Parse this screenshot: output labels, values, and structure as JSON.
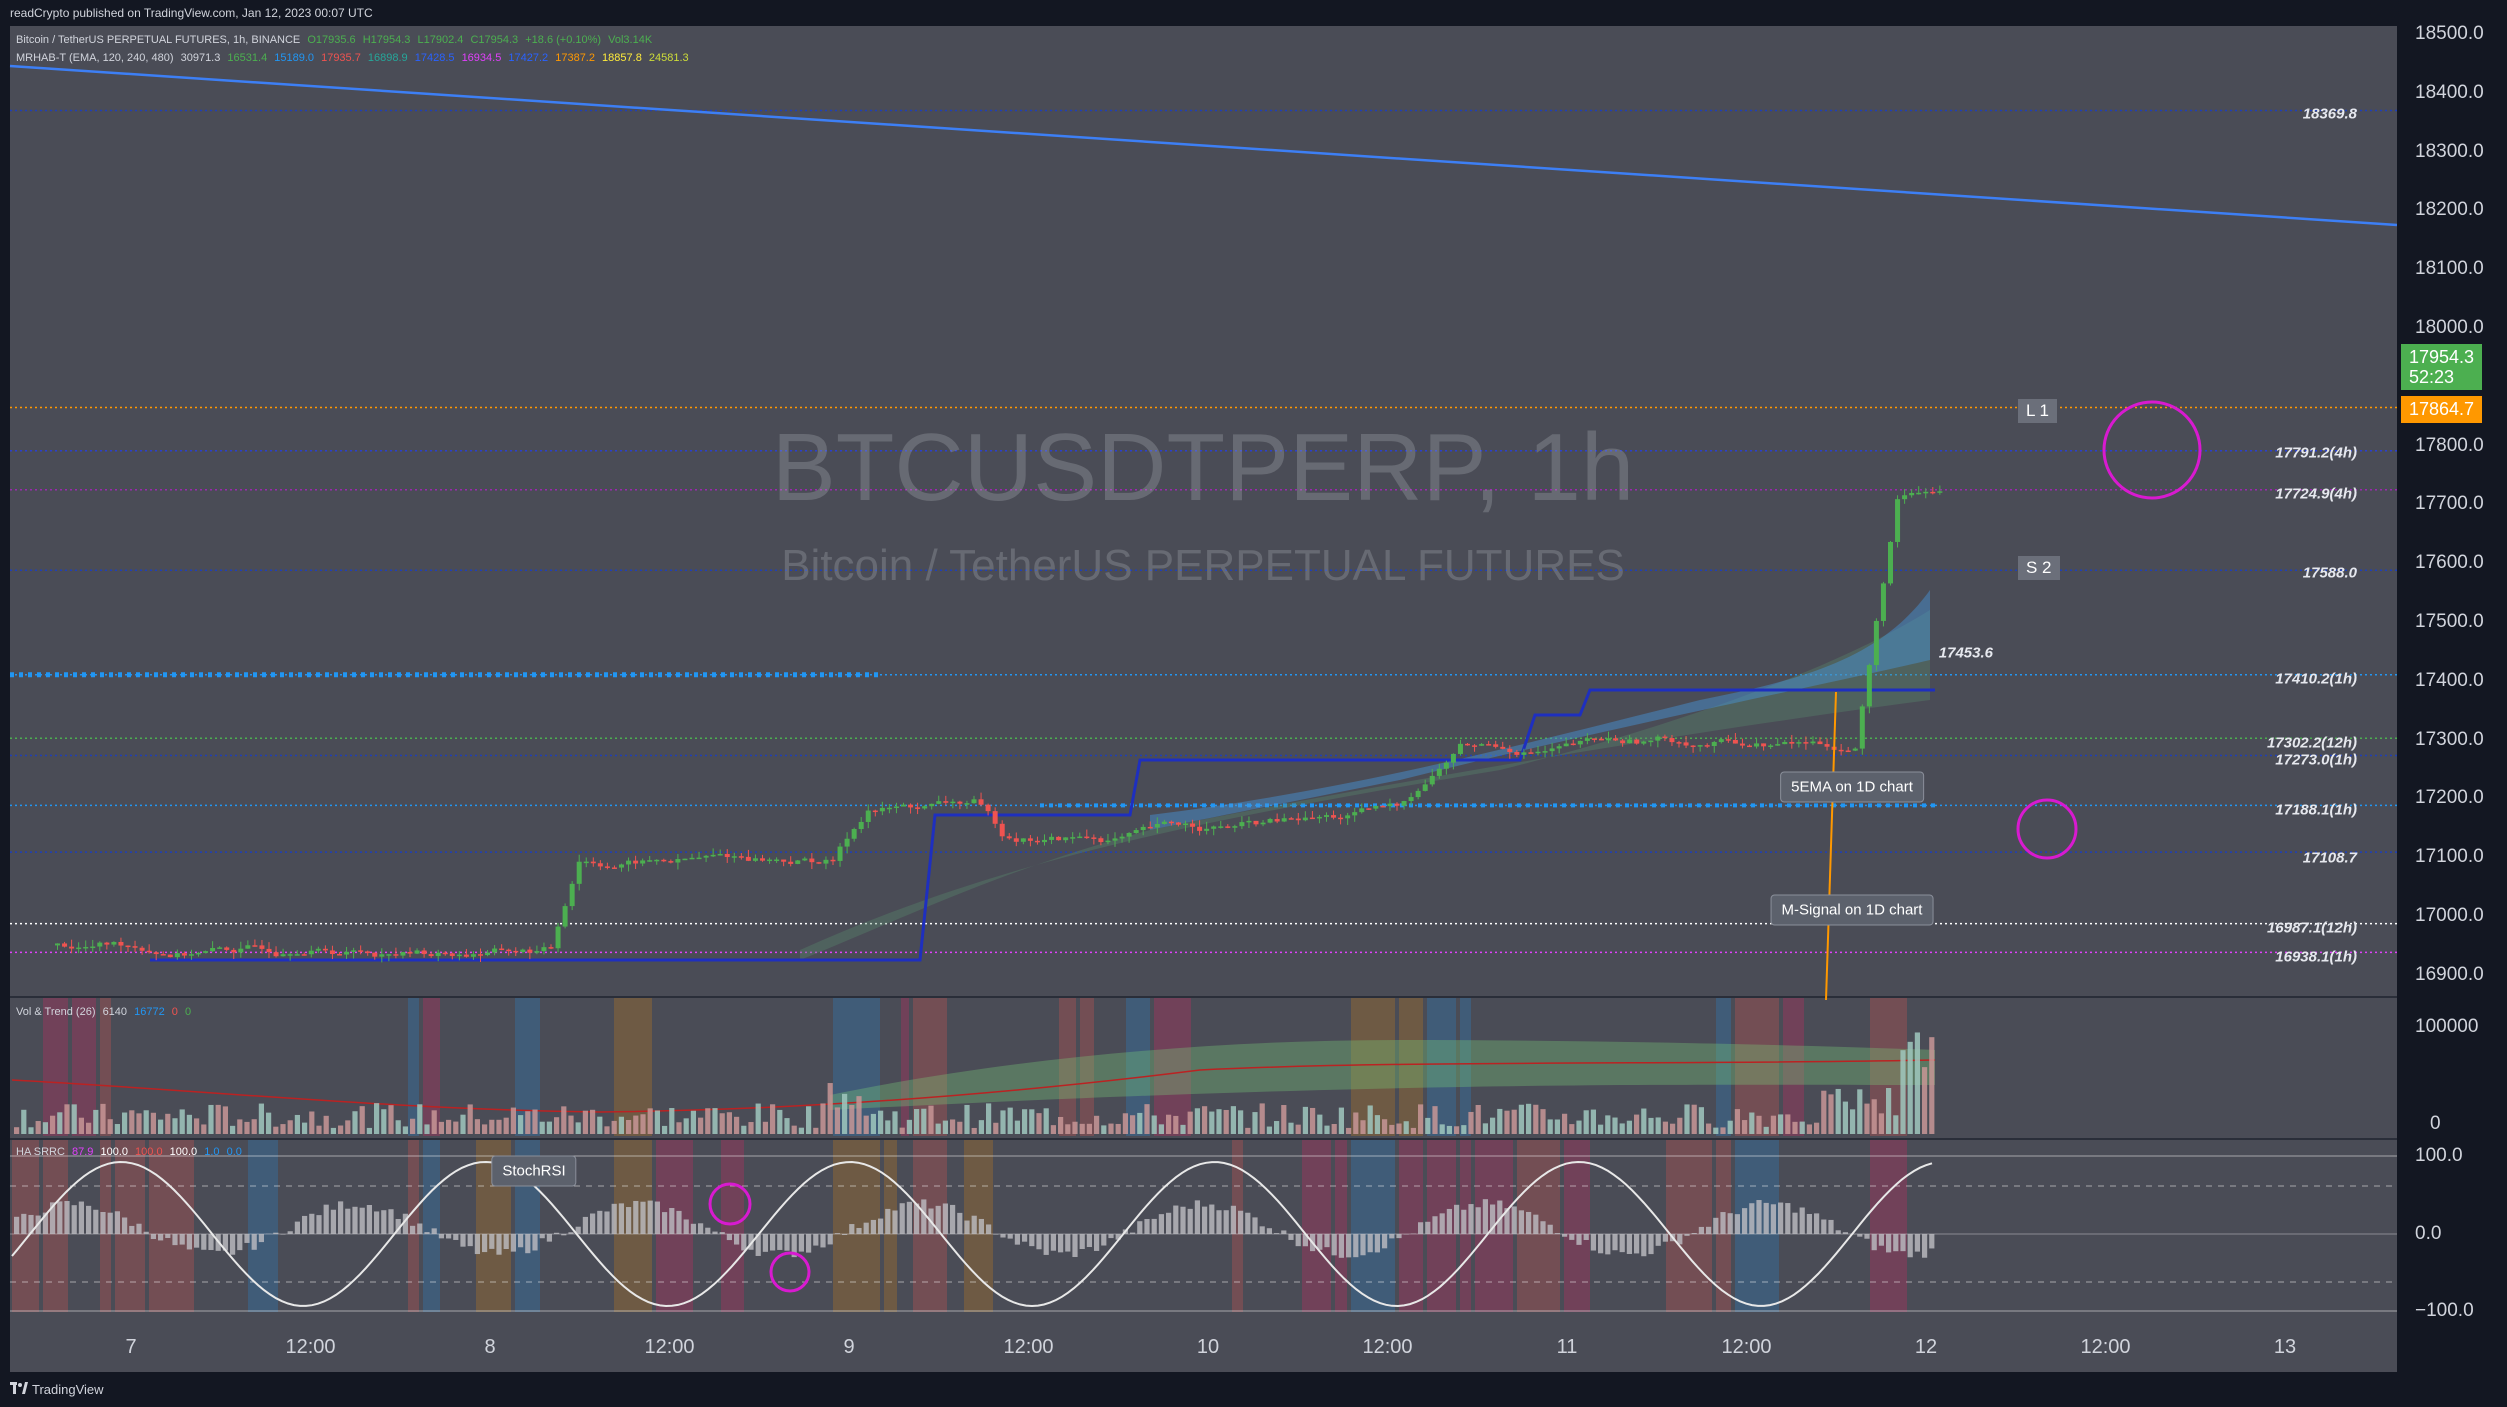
{
  "header": {
    "publisher": "readCrypto published on TradingView.com, Jan 12, 2023 00:07 UTC"
  },
  "legend_main": {
    "symbol": "Bitcoin / TetherUS PERPETUAL FUTURES, 1h, BINANCE",
    "o": "O17935.6",
    "h": "H17954.3",
    "l": "L17902.4",
    "c": "C17954.3",
    "chg": "+18.6 (+0.10%)",
    "vol": "Vol3.14K"
  },
  "legend_indicator": {
    "name": "MRHAB-T (EMA, 120, 240, 480)",
    "v1": "30971.3",
    "v2": "16531.4",
    "v3": "15189.0",
    "v4": "17935.7",
    "v5": "16898.9",
    "v6": "17428.5",
    "v7": "16934.5",
    "v8": "17427.2",
    "v9": "17387.2",
    "v10": "18857.8",
    "v11": "24581.3"
  },
  "watermark": {
    "ticker": "BTCUSDTPERP, 1h",
    "name": "Bitcoin / TetherUS PERPETUAL FUTURES"
  },
  "price_axis": {
    "labels": [
      "18500.0",
      "18400.0",
      "18300.0",
      "18200.0",
      "18100.0",
      "18000.0",
      "17800.0",
      "17700.0",
      "17600.0",
      "17500.0",
      "17400.0",
      "17300.0",
      "17200.0",
      "17100.0",
      "17000.0",
      "16900.0"
    ],
    "last_price": "17954.3",
    "countdown": "52:23",
    "orange_price": "17864.7",
    "last_price_color": "#4caf50",
    "orange_price_color": "#ff9800"
  },
  "levels": {
    "l1": "18369.8",
    "l2": "17791.2(4h)",
    "l3": "17724.9(4h)",
    "l4": "17588.0",
    "l5": "17453.6",
    "l6": "17410.2(1h)",
    "l7": "17302.2(12h)",
    "l8": "17273.0(1h)",
    "l9": "17188.1(1h)",
    "l10": "17108.7",
    "l11": "16987.1(12h)",
    "l12": "16938.1(1h)"
  },
  "tags": {
    "l_tag": "L 1",
    "s_tag": "S 2"
  },
  "annotations": {
    "ema_note": "5EMA on 1D chart",
    "msignal_note": "M-Signal on 1D chart",
    "stochrsi_note": "StochRSI"
  },
  "vol_pane": {
    "legend_name": "Vol & Trend (26)",
    "v1": "6140",
    "v2": "16772",
    "v3": "0",
    "v4": "0",
    "ticks": [
      "100000",
      "0"
    ]
  },
  "ha_pane": {
    "legend_name": "HA SRRC",
    "v1": "87.9",
    "v2": "100.0",
    "v3": "100.0",
    "v4": "100.0",
    "v5": "1.0",
    "v6": "0.0",
    "ticks": [
      "100.0",
      "0.0",
      "−100.0"
    ]
  },
  "time_axis": [
    "7",
    "12:00",
    "8",
    "12:00",
    "9",
    "12:00",
    "10",
    "12:00",
    "11",
    "12:00",
    "12",
    "12:00",
    "13"
  ],
  "footer": {
    "brand": "TradingView"
  },
  "colors": {
    "bull": "#4caf50",
    "bear": "#ef5350",
    "trend_line": "#2962ff",
    "ema_blue": "#1e3fb8",
    "magenta": "#d81ad0"
  }
}
